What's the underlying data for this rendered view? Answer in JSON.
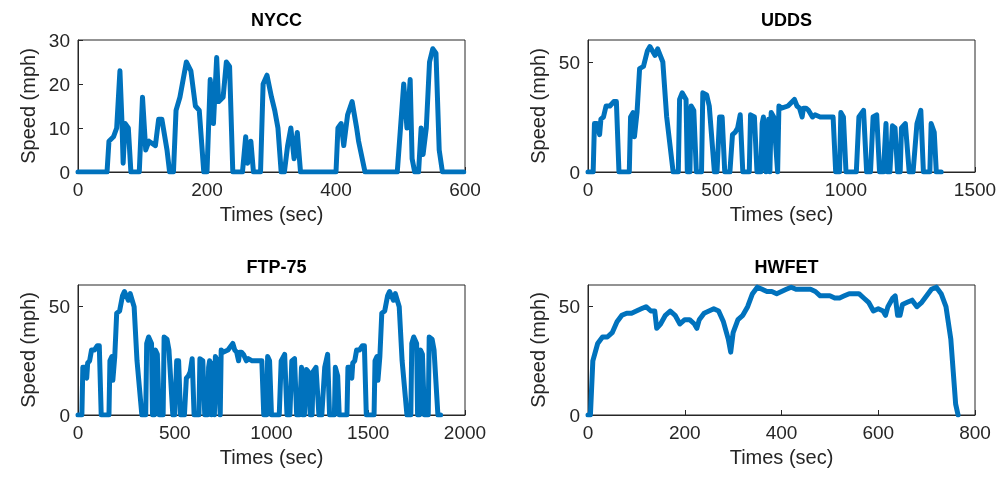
{
  "chart_data": [
    {
      "type": "line",
      "title": "NYCC",
      "xlabel": "Times (sec)",
      "ylabel": "Speed (mph)",
      "color": "#0072bd",
      "xlim": [
        0,
        600
      ],
      "ylim": [
        0,
        30
      ],
      "xticks": [
        0,
        200,
        400,
        600
      ],
      "yticks": [
        0,
        10,
        20,
        30
      ],
      "x": [
        0,
        45,
        48,
        55,
        60,
        65,
        68,
        70,
        73,
        78,
        82,
        95,
        100,
        105,
        110,
        120,
        125,
        130,
        138,
        142,
        148,
        152,
        158,
        168,
        175,
        182,
        188,
        195,
        200,
        205,
        210,
        215,
        218,
        225,
        230,
        235,
        240,
        255,
        260,
        263,
        268,
        272,
        283,
        287,
        293,
        300,
        305,
        310,
        315,
        320,
        325,
        330,
        335,
        340,
        345,
        400,
        403,
        408,
        412,
        418,
        425,
        432,
        435,
        445,
        495,
        500,
        505,
        510,
        515,
        518,
        522,
        528,
        532,
        535,
        540,
        545,
        550,
        555,
        560,
        565,
        598
      ],
      "values": [
        0,
        0,
        7,
        8,
        10,
        23,
        12,
        2,
        11,
        10,
        0,
        0,
        17,
        5,
        7,
        6,
        12,
        12,
        5,
        0,
        0,
        14,
        17,
        25,
        23,
        15,
        14,
        0,
        0,
        21,
        11,
        26,
        16,
        17,
        25,
        24,
        0,
        0,
        8,
        2,
        7,
        0,
        0,
        20,
        22,
        17,
        14,
        10,
        0,
        0,
        6,
        10,
        3,
        9,
        0,
        0,
        10,
        11,
        6,
        13,
        16,
        10,
        7,
        0,
        0,
        10,
        20,
        10,
        21,
        3,
        0,
        0,
        10,
        4,
        10,
        25,
        28,
        27,
        5,
        0,
        0
      ]
    },
    {
      "type": "line",
      "title": "UDDS",
      "xlabel": "Times (sec)",
      "ylabel": "Speed (mph)",
      "color": "#0072bd",
      "xlim": [
        0,
        1500
      ],
      "ylim": [
        0,
        60
      ],
      "xticks": [
        0,
        500,
        1000,
        1500
      ],
      "yticks": [
        0,
        50
      ],
      "x": [
        0,
        20,
        25,
        35,
        45,
        50,
        60,
        70,
        85,
        100,
        110,
        120,
        160,
        165,
        175,
        180,
        190,
        200,
        215,
        230,
        240,
        260,
        270,
        280,
        290,
        305,
        330,
        350,
        355,
        365,
        380,
        385,
        395,
        400,
        410,
        420,
        440,
        445,
        460,
        470,
        490,
        500,
        510,
        520,
        530,
        550,
        560,
        570,
        580,
        590,
        600,
        625,
        630,
        645,
        655,
        670,
        675,
        680,
        690,
        700,
        705,
        710,
        720,
        735,
        740,
        750,
        775,
        800,
        810,
        820,
        830,
        835,
        845,
        855,
        870,
        880,
        900,
        950,
        960,
        975,
        980,
        990,
        1000,
        1040,
        1050,
        1068,
        1080,
        1095,
        1105,
        1119,
        1130,
        1145,
        1155,
        1160,
        1170,
        1180,
        1190,
        1200,
        1210,
        1215,
        1230,
        1245,
        1260,
        1275,
        1290,
        1300,
        1325,
        1330,
        1342,
        1350,
        1369
      ],
      "values": [
        0,
        0,
        22,
        22,
        17,
        24,
        25,
        30,
        30,
        32,
        32,
        0,
        0,
        25,
        27,
        16,
        27,
        47,
        48,
        55,
        57,
        53,
        56,
        53,
        50,
        25,
        0,
        0,
        33,
        36,
        33,
        0,
        0,
        30,
        28,
        0,
        0,
        36,
        35,
        30,
        0,
        0,
        25,
        25,
        0,
        0,
        17,
        18,
        20,
        26,
        0,
        0,
        26,
        25,
        0,
        0,
        22,
        25,
        0,
        24,
        0,
        27,
        25,
        0,
        30,
        29,
        30,
        33,
        30,
        29,
        25,
        29,
        29,
        28,
        25,
        26,
        25,
        25,
        0,
        0,
        27,
        25,
        0,
        0,
        25,
        28,
        0,
        0,
        25,
        26,
        0,
        0,
        22,
        0,
        0,
        21,
        20,
        0,
        0,
        20,
        22,
        0,
        0,
        22,
        28,
        0,
        0,
        22,
        18,
        0,
        0
      ]
    },
    {
      "type": "line",
      "title": "FTP-75",
      "xlabel": "Times (sec)",
      "ylabel": "Speed (mph)",
      "color": "#0072bd",
      "xlim": [
        0,
        2000
      ],
      "ylim": [
        0,
        60
      ],
      "xticks": [
        0,
        500,
        1000,
        1500,
        2000
      ],
      "yticks": [
        0,
        50
      ],
      "x": [
        0,
        20,
        25,
        35,
        45,
        50,
        60,
        70,
        85,
        100,
        110,
        120,
        160,
        165,
        175,
        180,
        190,
        200,
        215,
        230,
        240,
        260,
        270,
        280,
        290,
        305,
        330,
        350,
        355,
        365,
        380,
        385,
        395,
        400,
        410,
        420,
        440,
        445,
        460,
        470,
        490,
        500,
        510,
        520,
        530,
        550,
        560,
        570,
        580,
        590,
        600,
        625,
        630,
        645,
        655,
        670,
        675,
        680,
        690,
        700,
        705,
        710,
        720,
        735,
        740,
        750,
        775,
        800,
        810,
        820,
        830,
        835,
        845,
        855,
        870,
        880,
        900,
        950,
        960,
        975,
        980,
        990,
        1000,
        1040,
        1050,
        1068,
        1080,
        1095,
        1105,
        1119,
        1130,
        1145,
        1155,
        1160,
        1170,
        1180,
        1190,
        1200,
        1210,
        1215,
        1230,
        1245,
        1260,
        1275,
        1290,
        1300,
        1325,
        1330,
        1342,
        1350,
        1370,
        1390,
        1395,
        1405,
        1415,
        1420,
        1430,
        1440,
        1455,
        1470,
        1480,
        1490,
        1530,
        1535,
        1545,
        1550,
        1560,
        1570,
        1585,
        1600,
        1610,
        1630,
        1640,
        1650,
        1660,
        1675,
        1700,
        1720,
        1725,
        1735,
        1750,
        1755,
        1765,
        1770,
        1780,
        1790,
        1810,
        1815,
        1830,
        1840,
        1860,
        1874
      ],
      "values": [
        0,
        0,
        22,
        22,
        17,
        24,
        25,
        30,
        30,
        32,
        32,
        0,
        0,
        25,
        27,
        16,
        27,
        47,
        48,
        55,
        57,
        53,
        56,
        53,
        50,
        25,
        0,
        0,
        33,
        36,
        33,
        0,
        0,
        30,
        28,
        0,
        0,
        36,
        35,
        30,
        0,
        0,
        25,
        25,
        0,
        0,
        17,
        18,
        20,
        26,
        0,
        0,
        26,
        25,
        0,
        0,
        22,
        25,
        0,
        24,
        0,
        27,
        25,
        0,
        30,
        29,
        30,
        33,
        30,
        29,
        25,
        29,
        29,
        28,
        25,
        26,
        25,
        25,
        0,
        0,
        27,
        25,
        0,
        0,
        25,
        28,
        0,
        0,
        25,
        26,
        0,
        0,
        22,
        0,
        0,
        21,
        20,
        0,
        0,
        20,
        22,
        0,
        0,
        22,
        28,
        0,
        0,
        22,
        18,
        0,
        0,
        0,
        22,
        22,
        17,
        24,
        25,
        30,
        30,
        32,
        32,
        0,
        0,
        25,
        27,
        16,
        27,
        47,
        48,
        55,
        57,
        53,
        56,
        53,
        50,
        25,
        0,
        0,
        33,
        36,
        33,
        0,
        0,
        30,
        28,
        0,
        0,
        36,
        35,
        30,
        0,
        0
      ]
    },
    {
      "type": "line",
      "title": "HWFET",
      "xlabel": "Times (sec)",
      "ylabel": "Speed (mph)",
      "color": "#0072bd",
      "xlim": [
        0,
        800
      ],
      "ylim": [
        0,
        60
      ],
      "xticks": [
        0,
        200,
        400,
        600,
        800
      ],
      "yticks": [
        0,
        50
      ],
      "x": [
        0,
        5,
        10,
        20,
        30,
        40,
        50,
        60,
        70,
        80,
        90,
        100,
        110,
        120,
        130,
        138,
        142,
        150,
        160,
        170,
        180,
        190,
        200,
        210,
        220,
        225,
        230,
        240,
        250,
        260,
        270,
        280,
        290,
        295,
        300,
        310,
        320,
        330,
        340,
        350,
        360,
        370,
        380,
        390,
        400,
        410,
        420,
        430,
        440,
        450,
        460,
        470,
        480,
        490,
        500,
        510,
        520,
        530,
        540,
        550,
        560,
        570,
        580,
        590,
        600,
        610,
        615,
        620,
        630,
        635,
        640,
        645,
        650,
        660,
        670,
        680,
        690,
        700,
        710,
        720,
        730,
        740,
        750,
        755,
        760,
        765
      ],
      "values": [
        0,
        0,
        25,
        33,
        36,
        36,
        38,
        43,
        46,
        47,
        47,
        48,
        49,
        50,
        48,
        48,
        40,
        42,
        46,
        48,
        46,
        42,
        44,
        44,
        42,
        40,
        44,
        47,
        48,
        49,
        48,
        43,
        35,
        29,
        38,
        44,
        46,
        50,
        56,
        59,
        58,
        57,
        57,
        56,
        57,
        58,
        59,
        58,
        58,
        58,
        58,
        57,
        55,
        55,
        55,
        54,
        54,
        55,
        56,
        56,
        56,
        54,
        52,
        48,
        49,
        48,
        46,
        50,
        54,
        55,
        46,
        46,
        51,
        52,
        53,
        50,
        52,
        55,
        58,
        59,
        56,
        50,
        35,
        20,
        5,
        0
      ]
    }
  ]
}
